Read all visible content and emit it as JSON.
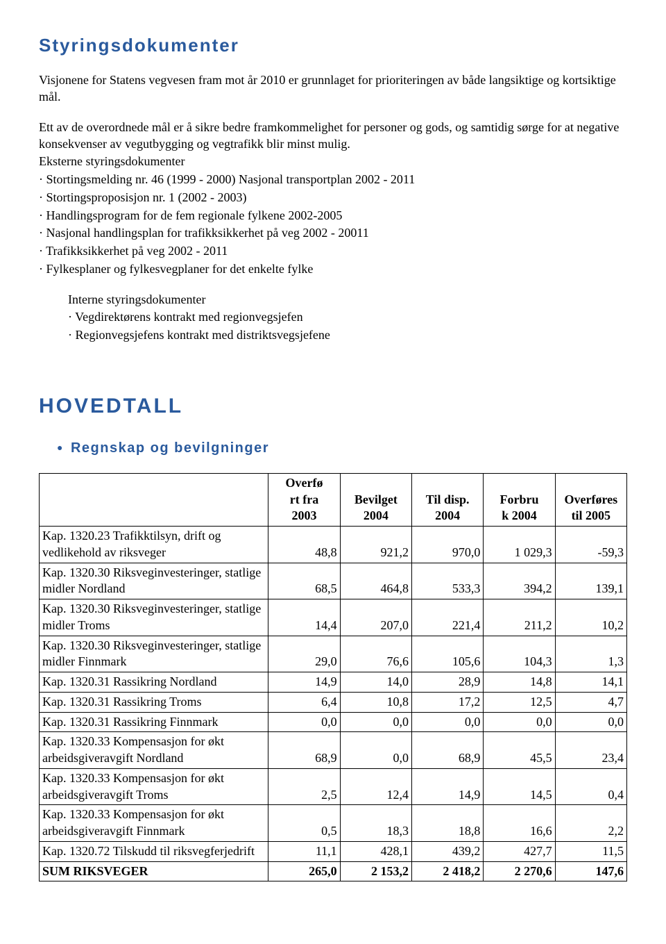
{
  "section1": {
    "title": "Styringsdokumenter",
    "para1": "Visjonene for Statens vegvesen fram mot år 2010 er grunnlaget for prioriteringen av både langsiktige og kortsiktige mål.",
    "para2": "Ett av de overordnede mål er å sikre bedre framkommelighet for personer og gods, og samtidig sørge for at negative konsekvenser av vegutbygging og vegtrafikk blir minst mulig.",
    "ext_label": "Eksterne styringsdokumenter",
    "ext_items": [
      "· Stortingsmelding nr. 46 (1999 - 2000) Nasjonal transportplan 2002 - 2011",
      "· Stortingsproposisjon nr. 1 (2002 - 2003)",
      "· Handlingsprogram for de fem regionale fylkene 2002-2005",
      "· Nasjonal handlingsplan for trafikksikkerhet på veg 2002 - 20011",
      "· Trafikksikkerhet på veg 2002 - 2011",
      "· Fylkesplaner og fylkesvegplaner for det enkelte fylke"
    ],
    "int_label": "Interne styringsdokumenter",
    "int_items": [
      "· Vegdirektørens kontrakt med regionvegsjefen",
      "· Regionvegsjefens kontrakt med distriktsvegsjefene"
    ]
  },
  "hovedtall": {
    "title": "HOVEDTALL",
    "subtitle": "Regnskap og bevilgninger"
  },
  "table": {
    "columns": [
      "",
      "Overfø rt fra 2003",
      "Bevilget 2004",
      "Til disp. 2004",
      "Forbru k 2004",
      "Overføres til 2005"
    ],
    "col_lines": {
      "c1a": "Overfø",
      "c1b": "rt fra",
      "c1c": "2003",
      "c2a": "Bevilget",
      "c2b": "2004",
      "c3a": "Til disp.",
      "c3b": "2004",
      "c4a": "Forbru",
      "c4b": "k 2004",
      "c5a": "Overføres",
      "c5b": "til 2005"
    },
    "rows": [
      {
        "label": "Kap. 1320.23 Trafikktilsyn, drift og vedlikehold av riksveger",
        "v": [
          "48,8",
          "921,2",
          "970,0",
          "1 029,3",
          "-59,3"
        ]
      },
      {
        "label": "Kap. 1320.30 Riksveginvesteringer, statlige midler Nordland",
        "v": [
          "68,5",
          "464,8",
          "533,3",
          "394,2",
          "139,1"
        ]
      },
      {
        "label": "Kap. 1320.30 Riksveginvesteringer, statlige midler Troms",
        "v": [
          "14,4",
          "207,0",
          "221,4",
          "211,2",
          "10,2"
        ]
      },
      {
        "label": "Kap. 1320.30 Riksveginvesteringer, statlige midler Finnmark",
        "v": [
          "29,0",
          "76,6",
          "105,6",
          "104,3",
          "1,3"
        ]
      },
      {
        "label": "Kap. 1320.31 Rassikring Nordland",
        "v": [
          "14,9",
          "14,0",
          "28,9",
          "14,8",
          "14,1"
        ]
      },
      {
        "label": "Kap. 1320.31 Rassikring Troms",
        "v": [
          "6,4",
          "10,8",
          "17,2",
          "12,5",
          "4,7"
        ]
      },
      {
        "label": "Kap. 1320.31 Rassikring Finnmark",
        "v": [
          "0,0",
          "0,0",
          "0,0",
          "0,0",
          "0,0"
        ]
      },
      {
        "label": "Kap. 1320.33 Kompensasjon for økt arbeidsgiveravgift Nordland",
        "v": [
          "68,9",
          "0,0",
          "68,9",
          "45,5",
          "23,4"
        ]
      },
      {
        "label": "Kap. 1320.33 Kompensasjon for økt arbeidsgiveravgift Troms",
        "v": [
          "2,5",
          "12,4",
          "14,9",
          "14,5",
          "0,4"
        ]
      },
      {
        "label": "Kap. 1320.33 Kompensasjon for økt arbeidsgiveravgift Finnmark",
        "v": [
          "0,5",
          "18,3",
          "18,8",
          "16,6",
          "2,2"
        ]
      },
      {
        "label": "Kap. 1320.72 Tilskudd til riksvegferjedrift",
        "v": [
          "11,1",
          "428,1",
          "439,2",
          "427,7",
          "11,5"
        ]
      }
    ],
    "sum": {
      "label": "SUM RIKSVEGER",
      "v": [
        "265,0",
        "2 153,2",
        "2 418,2",
        "2 270,6",
        "147,6"
      ]
    }
  }
}
